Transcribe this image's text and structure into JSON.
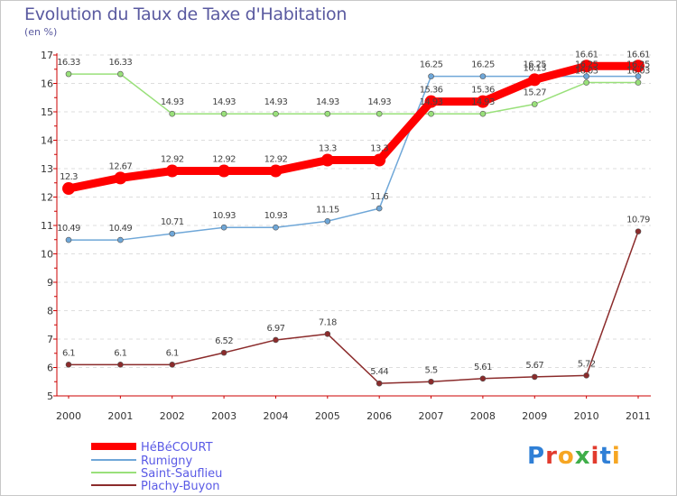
{
  "title": "Evolution du Taux de Taxe d'Habitation",
  "unit_label": "(en %)",
  "logo_text": "Proxiti",
  "colors": {
    "title": "#5a5aa0",
    "legend_text": "#5a5ae6",
    "grid": "#dddddd"
  },
  "chart_data": {
    "type": "line",
    "title": "Evolution du Taux de Taxe d'Habitation",
    "ylabel": "(en %)",
    "xlabel": "",
    "ylim": [
      5,
      17
    ],
    "y_ticks": [
      5,
      6,
      7,
      8,
      9,
      10,
      11,
      12,
      13,
      14,
      15,
      16,
      17
    ],
    "x": [
      "2000",
      "2001",
      "2002",
      "2003",
      "2004",
      "2005",
      "2006",
      "2007",
      "2008",
      "2009",
      "2010",
      "2011"
    ],
    "grid": "horizontal-dashed",
    "legend_position": "bottom-left",
    "series": [
      {
        "name": "HéBéCOURT",
        "color": "#ff0000",
        "values": [
          12.3,
          12.67,
          12.92,
          12.92,
          12.92,
          13.3,
          13.3,
          15.36,
          15.36,
          16.13,
          16.61,
          16.61
        ],
        "labels": [
          "12.3",
          "12.67",
          "12.92",
          "12.92",
          "12.92",
          "13.3",
          "13.3",
          "15.36",
          "15.36",
          "16.13",
          "16.61",
          "16.61"
        ]
      },
      {
        "name": "Rumigny",
        "color": "#6fa7d8",
        "values": [
          10.49,
          10.49,
          10.71,
          10.93,
          10.93,
          11.15,
          11.6,
          16.25,
          16.25,
          16.25,
          16.25,
          16.25
        ],
        "labels": [
          "10.49",
          "10.49",
          "10.71",
          "10.93",
          "10.93",
          "11.15",
          "11.6",
          "16.25",
          "16.25",
          "16.25",
          "16.25",
          "16.25"
        ]
      },
      {
        "name": "Saint-Sauflieu",
        "color": "#99e07a",
        "values": [
          16.33,
          16.33,
          14.93,
          14.93,
          14.93,
          14.93,
          14.93,
          14.93,
          14.93,
          15.27,
          16.03,
          16.03
        ],
        "labels": [
          "16.33",
          "16.33",
          "14.93",
          "14.93",
          "14.93",
          "14.93",
          "14.93",
          "14.93",
          "14.93",
          "15.27",
          "16.03",
          "16.03"
        ]
      },
      {
        "name": "Plachy-Buyon",
        "color": "#8b2b2b",
        "values": [
          6.1,
          6.1,
          6.1,
          6.52,
          6.97,
          7.18,
          5.44,
          5.5,
          5.61,
          5.67,
          5.72,
          10.79
        ],
        "labels": [
          "6.1",
          "6.1",
          "6.1",
          "6.52",
          "6.97",
          "7.18",
          "5.44",
          "5.5",
          "5.61",
          "5.67",
          "5.72",
          "10.79"
        ]
      }
    ]
  }
}
